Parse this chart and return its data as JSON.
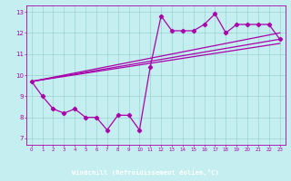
{
  "xlabel": "Windchill (Refroidissement éolien,°C)",
  "background_color": "#c5eef0",
  "line_color": "#aa00aa",
  "border_color": "#440066",
  "xlim": [
    -0.5,
    23.5
  ],
  "ylim": [
    6.7,
    13.3
  ],
  "xticks": [
    0,
    1,
    2,
    3,
    4,
    5,
    6,
    7,
    8,
    9,
    10,
    11,
    12,
    13,
    14,
    15,
    16,
    17,
    18,
    19,
    20,
    21,
    22,
    23
  ],
  "yticks": [
    7,
    8,
    9,
    10,
    11,
    12,
    13
  ],
  "series1_x": [
    0,
    1,
    2,
    3,
    4,
    5,
    6,
    7,
    8,
    9,
    10,
    11,
    12,
    13,
    14,
    15,
    16,
    17,
    18,
    19,
    20,
    21,
    22,
    23
  ],
  "series1_y": [
    9.7,
    9.0,
    8.4,
    8.2,
    8.4,
    8.0,
    8.0,
    7.4,
    8.1,
    8.1,
    7.4,
    10.4,
    12.8,
    12.1,
    12.1,
    12.1,
    12.4,
    12.9,
    12.0,
    12.4,
    12.4,
    12.4,
    12.4,
    11.7
  ],
  "series2_x": [
    0,
    23
  ],
  "series2_y": [
    9.7,
    11.7
  ],
  "series3_x": [
    0,
    23
  ],
  "series3_y": [
    9.7,
    12.0
  ],
  "series4_x": [
    0,
    23
  ],
  "series4_y": [
    9.7,
    11.5
  ]
}
